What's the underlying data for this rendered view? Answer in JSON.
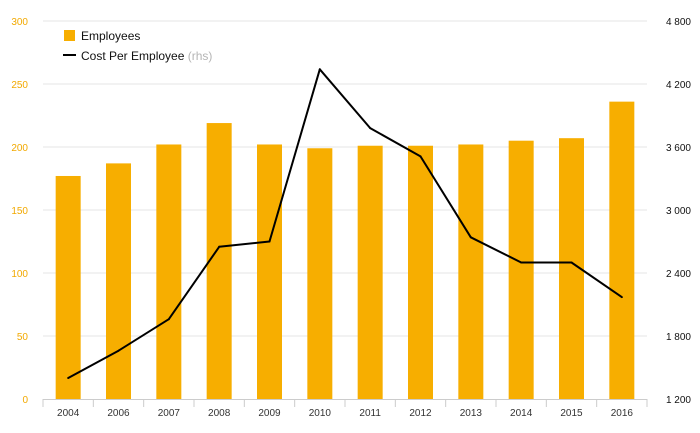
{
  "chart_data": {
    "type": "bar+line",
    "categories": [
      "2004",
      "2006",
      "2007",
      "2008",
      "2009",
      "2010",
      "2011",
      "2012",
      "2013",
      "2014",
      "2015",
      "2016"
    ],
    "series": [
      {
        "name": "Employees",
        "type": "bar",
        "axis": "left",
        "color": "#f7ae00",
        "values": [
          177,
          187,
          202,
          219,
          202,
          199,
          201,
          201,
          202,
          205,
          207,
          236
        ]
      },
      {
        "name": "Cost Per Employee",
        "legend_suffix": "(rhs)",
        "type": "line",
        "axis": "right",
        "color": "#000000",
        "values": [
          1400,
          1660,
          1960,
          2650,
          2700,
          4340,
          3780,
          3510,
          2740,
          2500,
          2500,
          2170
        ]
      }
    ],
    "y_left": {
      "min": 0,
      "max": 300,
      "ticks": [
        "0",
        "50",
        "100",
        "150",
        "200",
        "250",
        "300"
      ],
      "color": "#f2a900"
    },
    "y_right": {
      "min": 1200,
      "max": 4800,
      "ticks": [
        "1 200",
        "1 800",
        "2 400",
        "3 000",
        "3 600",
        "4 200",
        "4 800"
      ],
      "color": "#000000"
    },
    "grid": true,
    "legend_position": "top-left"
  }
}
